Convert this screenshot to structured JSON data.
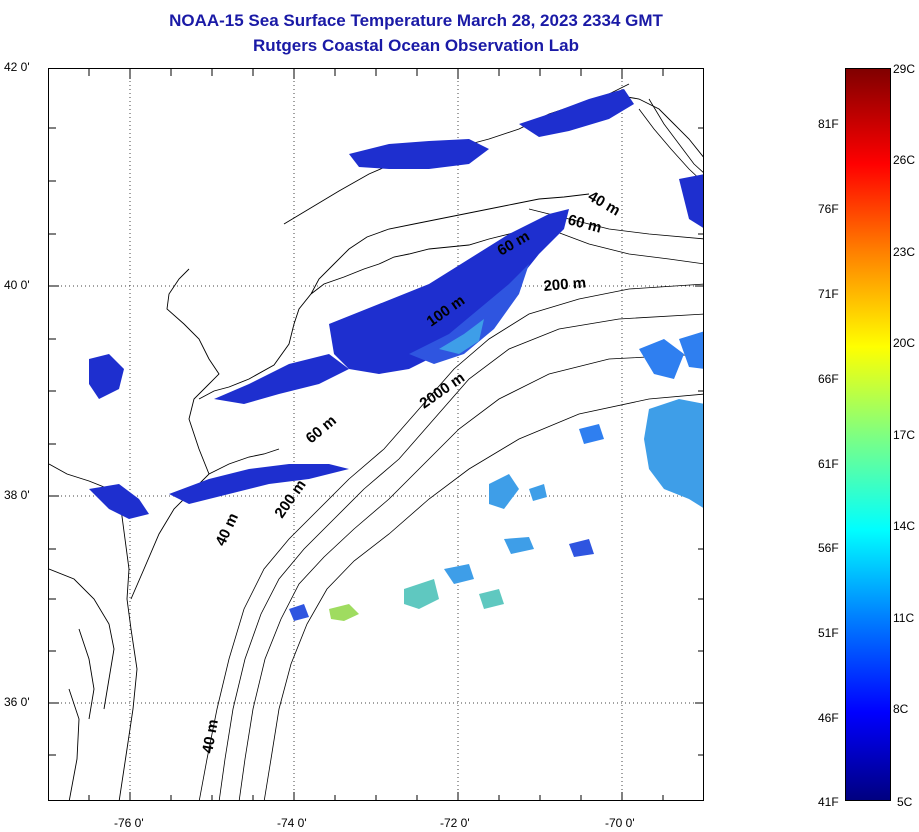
{
  "title": {
    "line1": "NOAA-15 Sea Surface Temperature March 28, 2023 2334 GMT",
    "line2": "Rutgers Coastal Ocean Observation Lab"
  },
  "map": {
    "lat_labels": [
      "42 0'",
      "40 0'",
      "38 0'",
      "36 0'"
    ],
    "lon_labels": [
      "-76 0'",
      "-74 0'",
      "-72 0'",
      "-70 0'"
    ],
    "contour_labels": [
      "40 m",
      "60 m",
      "60 m",
      "200 m",
      "100 m",
      "2000 m",
      "60 m",
      "200 m",
      "40 m",
      "40 m"
    ],
    "gridlines": "dotted"
  },
  "colorbar": {
    "fahrenheit_labels": [
      "81F",
      "76F",
      "71F",
      "66F",
      "61F",
      "56F",
      "51F",
      "46F",
      "41F"
    ],
    "celsius_labels": [
      "29C",
      "26C",
      "23C",
      "20C",
      "17C",
      "14C",
      "11C",
      "8C",
      "5C"
    ],
    "colors": [
      "#800000",
      "#ff0000",
      "#ff8000",
      "#ffff00",
      "#80ff80",
      "#00ffff",
      "#0080ff",
      "#0000ff",
      "#000080"
    ]
  },
  "colors": {
    "title": "#1a1aa6",
    "cold_water": "#1e2fcf",
    "mid_water": "#2f7ff0",
    "warm_water": "#4fd8c8"
  }
}
